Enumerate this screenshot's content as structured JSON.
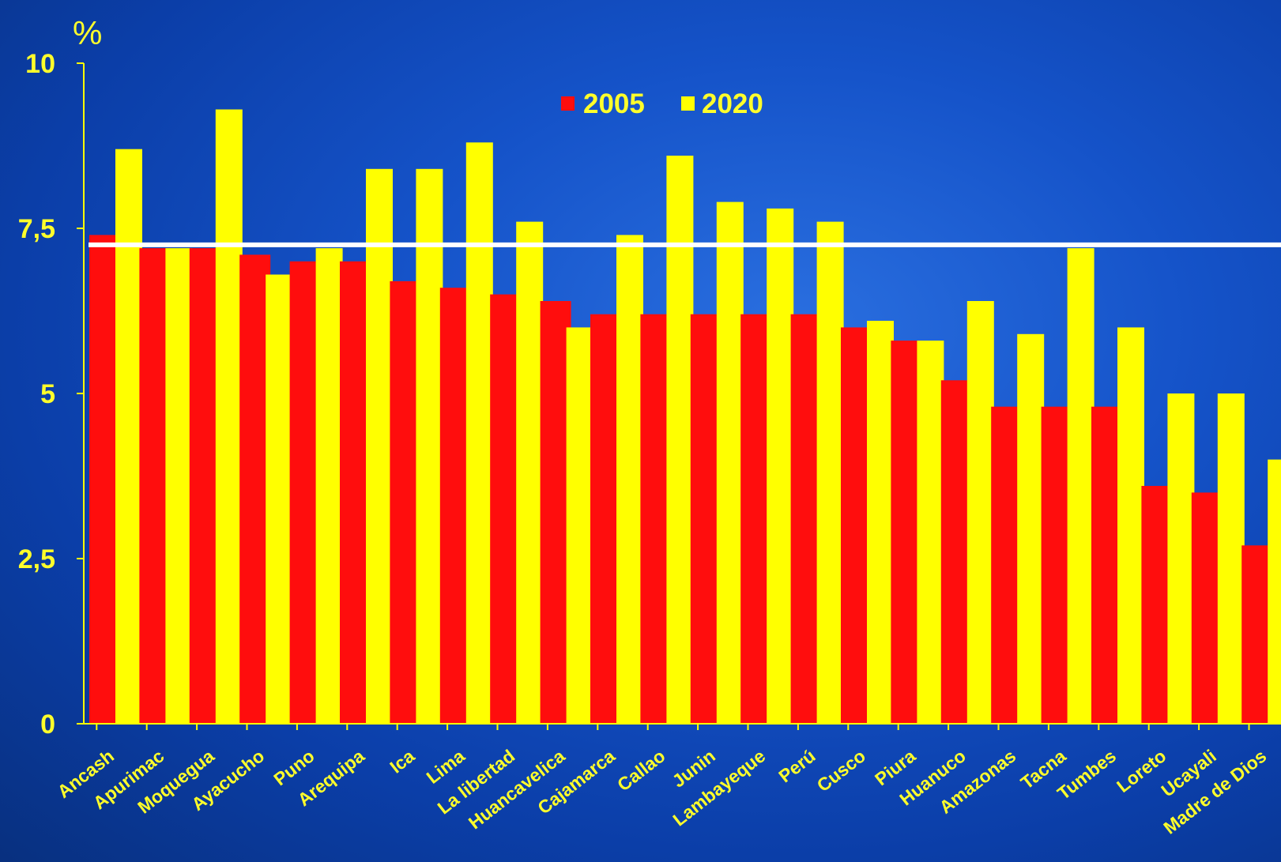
{
  "colors": {
    "series_2005": "#ff0d0d",
    "series_2020": "#ffff00",
    "text": "#ffff2b",
    "reference_line": "#ffffff"
  },
  "chart_data": {
    "type": "bar",
    "ylabel": "%",
    "ylim": [
      0,
      10
    ],
    "yticks": [
      {
        "value": 0,
        "label": "0"
      },
      {
        "value": 2.5,
        "label": "2,5"
      },
      {
        "value": 5,
        "label": "5"
      },
      {
        "value": 7.5,
        "label": "7,5"
      },
      {
        "value": 10,
        "label": "10"
      }
    ],
    "reference_line": 7.25,
    "legend_position": "top-center",
    "categories": [
      "Ancash",
      "Apurimac",
      "Moquegua",
      "Ayacucho",
      "Puno",
      "Arequipa",
      "Ica",
      "Lima",
      "La libertad",
      "Huancavelica",
      "Cajamarca",
      "Callao",
      "Junin",
      "Lambayeque",
      "Perú",
      "Cusco",
      "Piura",
      "Huanuco",
      "Amazonas",
      "Tacna",
      "Tumbes",
      "Loreto",
      "Ucayali",
      "Madre de Dios"
    ],
    "series": [
      {
        "name": "2005",
        "values": [
          7.4,
          7.2,
          7.2,
          7.1,
          7.0,
          7.0,
          6.7,
          6.6,
          6.5,
          6.4,
          6.2,
          6.2,
          6.2,
          6.2,
          6.2,
          6.0,
          5.8,
          5.2,
          4.8,
          4.8,
          4.8,
          3.6,
          3.5,
          2.7
        ]
      },
      {
        "name": "2020",
        "values": [
          8.7,
          7.2,
          9.3,
          6.8,
          7.2,
          8.4,
          8.4,
          8.8,
          7.6,
          6.0,
          7.4,
          8.6,
          7.9,
          7.8,
          7.6,
          6.1,
          5.8,
          6.4,
          5.9,
          7.2,
          6.0,
          5.0,
          5.0,
          4.0
        ]
      }
    ]
  }
}
